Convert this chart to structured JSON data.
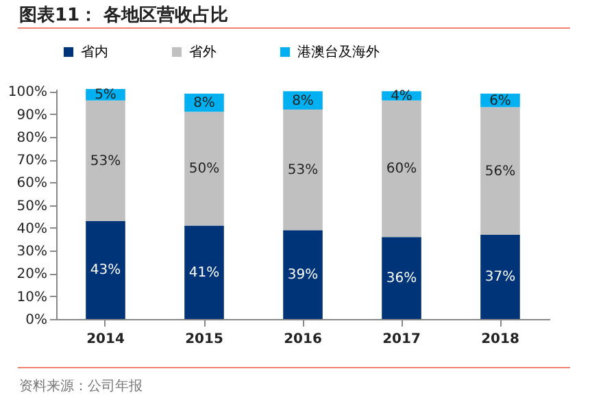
{
  "chart_data": {
    "type": "bar",
    "title": "图表11：  各地区营收占比",
    "annotations": [
      "资料来源：公司年报"
    ],
    "stacked": true,
    "legend": "top",
    "categories": [
      "2014",
      "2015",
      "2016",
      "2017",
      "2018"
    ],
    "series": [
      {
        "name": "省内",
        "color": "#003479",
        "values": [
          43,
          41,
          39,
          36,
          37
        ],
        "value_labels": [
          "43%",
          "41%",
          "39%",
          "36%",
          "37%"
        ]
      },
      {
        "name": "省外",
        "color": "#c0c0c0",
        "values": [
          53,
          50,
          53,
          60,
          56
        ],
        "value_labels": [
          "53%",
          "50%",
          "53%",
          "60%",
          "56%"
        ]
      },
      {
        "name": "港澳台及海外",
        "color": "#00b0f0",
        "values": [
          5,
          8,
          8,
          4,
          6
        ],
        "value_labels": [
          "5%",
          "8%",
          "8%",
          "4%",
          "6%"
        ]
      }
    ],
    "ylim": [
      0,
      101
    ],
    "yticks": [
      {
        "value": 0,
        "label": "0%"
      },
      {
        "value": 10,
        "label": "10%"
      },
      {
        "value": 20,
        "label": "20%"
      },
      {
        "value": 30,
        "label": "30%"
      },
      {
        "value": 40,
        "label": "40%"
      },
      {
        "value": 50,
        "label": "50%"
      },
      {
        "value": 60,
        "label": "60%"
      },
      {
        "value": 70,
        "label": "70%"
      },
      {
        "value": 80,
        "label": "80%"
      },
      {
        "value": 90,
        "label": "90%"
      },
      {
        "value": 100,
        "label": "100%"
      }
    ]
  }
}
